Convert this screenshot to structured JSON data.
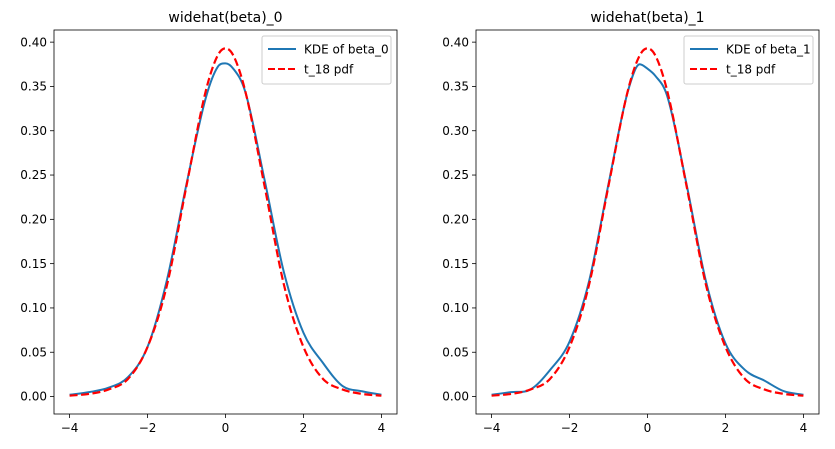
{
  "chart_data": [
    {
      "type": "line",
      "title": "widehat(beta)_0",
      "xlabel": "",
      "ylabel": "",
      "xlim": [
        -4.4,
        4.4
      ],
      "ylim": [
        -0.0197,
        0.4137
      ],
      "xticks": [
        -4,
        -2,
        0,
        2,
        4
      ],
      "xtick_labels": [
        "−4",
        "−2",
        "0",
        "2",
        "4"
      ],
      "yticks": [
        0.0,
        0.05,
        0.1,
        0.15,
        0.2,
        0.25,
        0.3,
        0.35,
        0.4
      ],
      "ytick_labels": [
        "0.00",
        "0.05",
        "0.10",
        "0.15",
        "0.20",
        "0.25",
        "0.30",
        "0.35",
        "0.40"
      ],
      "grid": false,
      "legend_position": "upper right",
      "series": [
        {
          "name": "KDE of beta_0",
          "color": "#1f77b4",
          "style": "solid",
          "x": [
            -4,
            -3.5,
            -3,
            -2.5,
            -2,
            -1.5,
            -1,
            -0.5,
            -0.2,
            0,
            0.2,
            0.5,
            1,
            1.5,
            2,
            2.5,
            3,
            3.5,
            4
          ],
          "y": [
            0.002,
            0.005,
            0.01,
            0.022,
            0.056,
            0.132,
            0.24,
            0.338,
            0.372,
            0.376,
            0.37,
            0.345,
            0.245,
            0.14,
            0.072,
            0.038,
            0.012,
            0.006,
            0.002
          ]
        },
        {
          "name": "t_18 pdf",
          "color": "#ff0000",
          "style": "dashed",
          "x": [
            -4,
            -3.5,
            -3,
            -2.5,
            -2,
            -1.5,
            -1,
            -0.5,
            -0.2,
            0,
            0.2,
            0.5,
            1,
            1.5,
            2,
            2.5,
            3,
            3.5,
            4
          ],
          "y": [
            0.001,
            0.003,
            0.008,
            0.02,
            0.056,
            0.126,
            0.238,
            0.346,
            0.385,
            0.393,
            0.385,
            0.346,
            0.238,
            0.126,
            0.056,
            0.02,
            0.008,
            0.003,
            0.001
          ]
        }
      ]
    },
    {
      "type": "line",
      "title": "widehat(beta)_1",
      "xlabel": "",
      "ylabel": "",
      "xlim": [
        -4.4,
        4.4
      ],
      "ylim": [
        -0.0197,
        0.4137
      ],
      "xticks": [
        -4,
        -2,
        0,
        2,
        4
      ],
      "xtick_labels": [
        "−4",
        "−2",
        "0",
        "2",
        "4"
      ],
      "yticks": [
        0.0,
        0.05,
        0.1,
        0.15,
        0.2,
        0.25,
        0.3,
        0.35,
        0.4
      ],
      "ytick_labels": [
        "0.00",
        "0.05",
        "0.10",
        "0.15",
        "0.20",
        "0.25",
        "0.30",
        "0.35",
        "0.40"
      ],
      "grid": false,
      "legend_position": "upper right",
      "series": [
        {
          "name": "KDE of beta_1",
          "color": "#1f77b4",
          "style": "solid",
          "x": [
            -4,
            -3.5,
            -3,
            -2.5,
            -2,
            -1.5,
            -1,
            -0.5,
            -0.2,
            0,
            0.2,
            0.5,
            1,
            1.5,
            2,
            2.5,
            3,
            3.5,
            4
          ],
          "y": [
            0.002,
            0.005,
            0.008,
            0.03,
            0.062,
            0.13,
            0.24,
            0.345,
            0.375,
            0.37,
            0.362,
            0.34,
            0.24,
            0.13,
            0.06,
            0.03,
            0.018,
            0.006,
            0.002
          ]
        },
        {
          "name": "t_18 pdf",
          "color": "#ff0000",
          "style": "dashed",
          "x": [
            -4,
            -3.5,
            -3,
            -2.5,
            -2,
            -1.5,
            -1,
            -0.5,
            -0.2,
            0,
            0.2,
            0.5,
            1,
            1.5,
            2,
            2.5,
            3,
            3.5,
            4
          ],
          "y": [
            0.001,
            0.003,
            0.008,
            0.02,
            0.056,
            0.126,
            0.238,
            0.346,
            0.385,
            0.393,
            0.385,
            0.346,
            0.238,
            0.126,
            0.056,
            0.02,
            0.008,
            0.003,
            0.001
          ]
        }
      ]
    }
  ]
}
